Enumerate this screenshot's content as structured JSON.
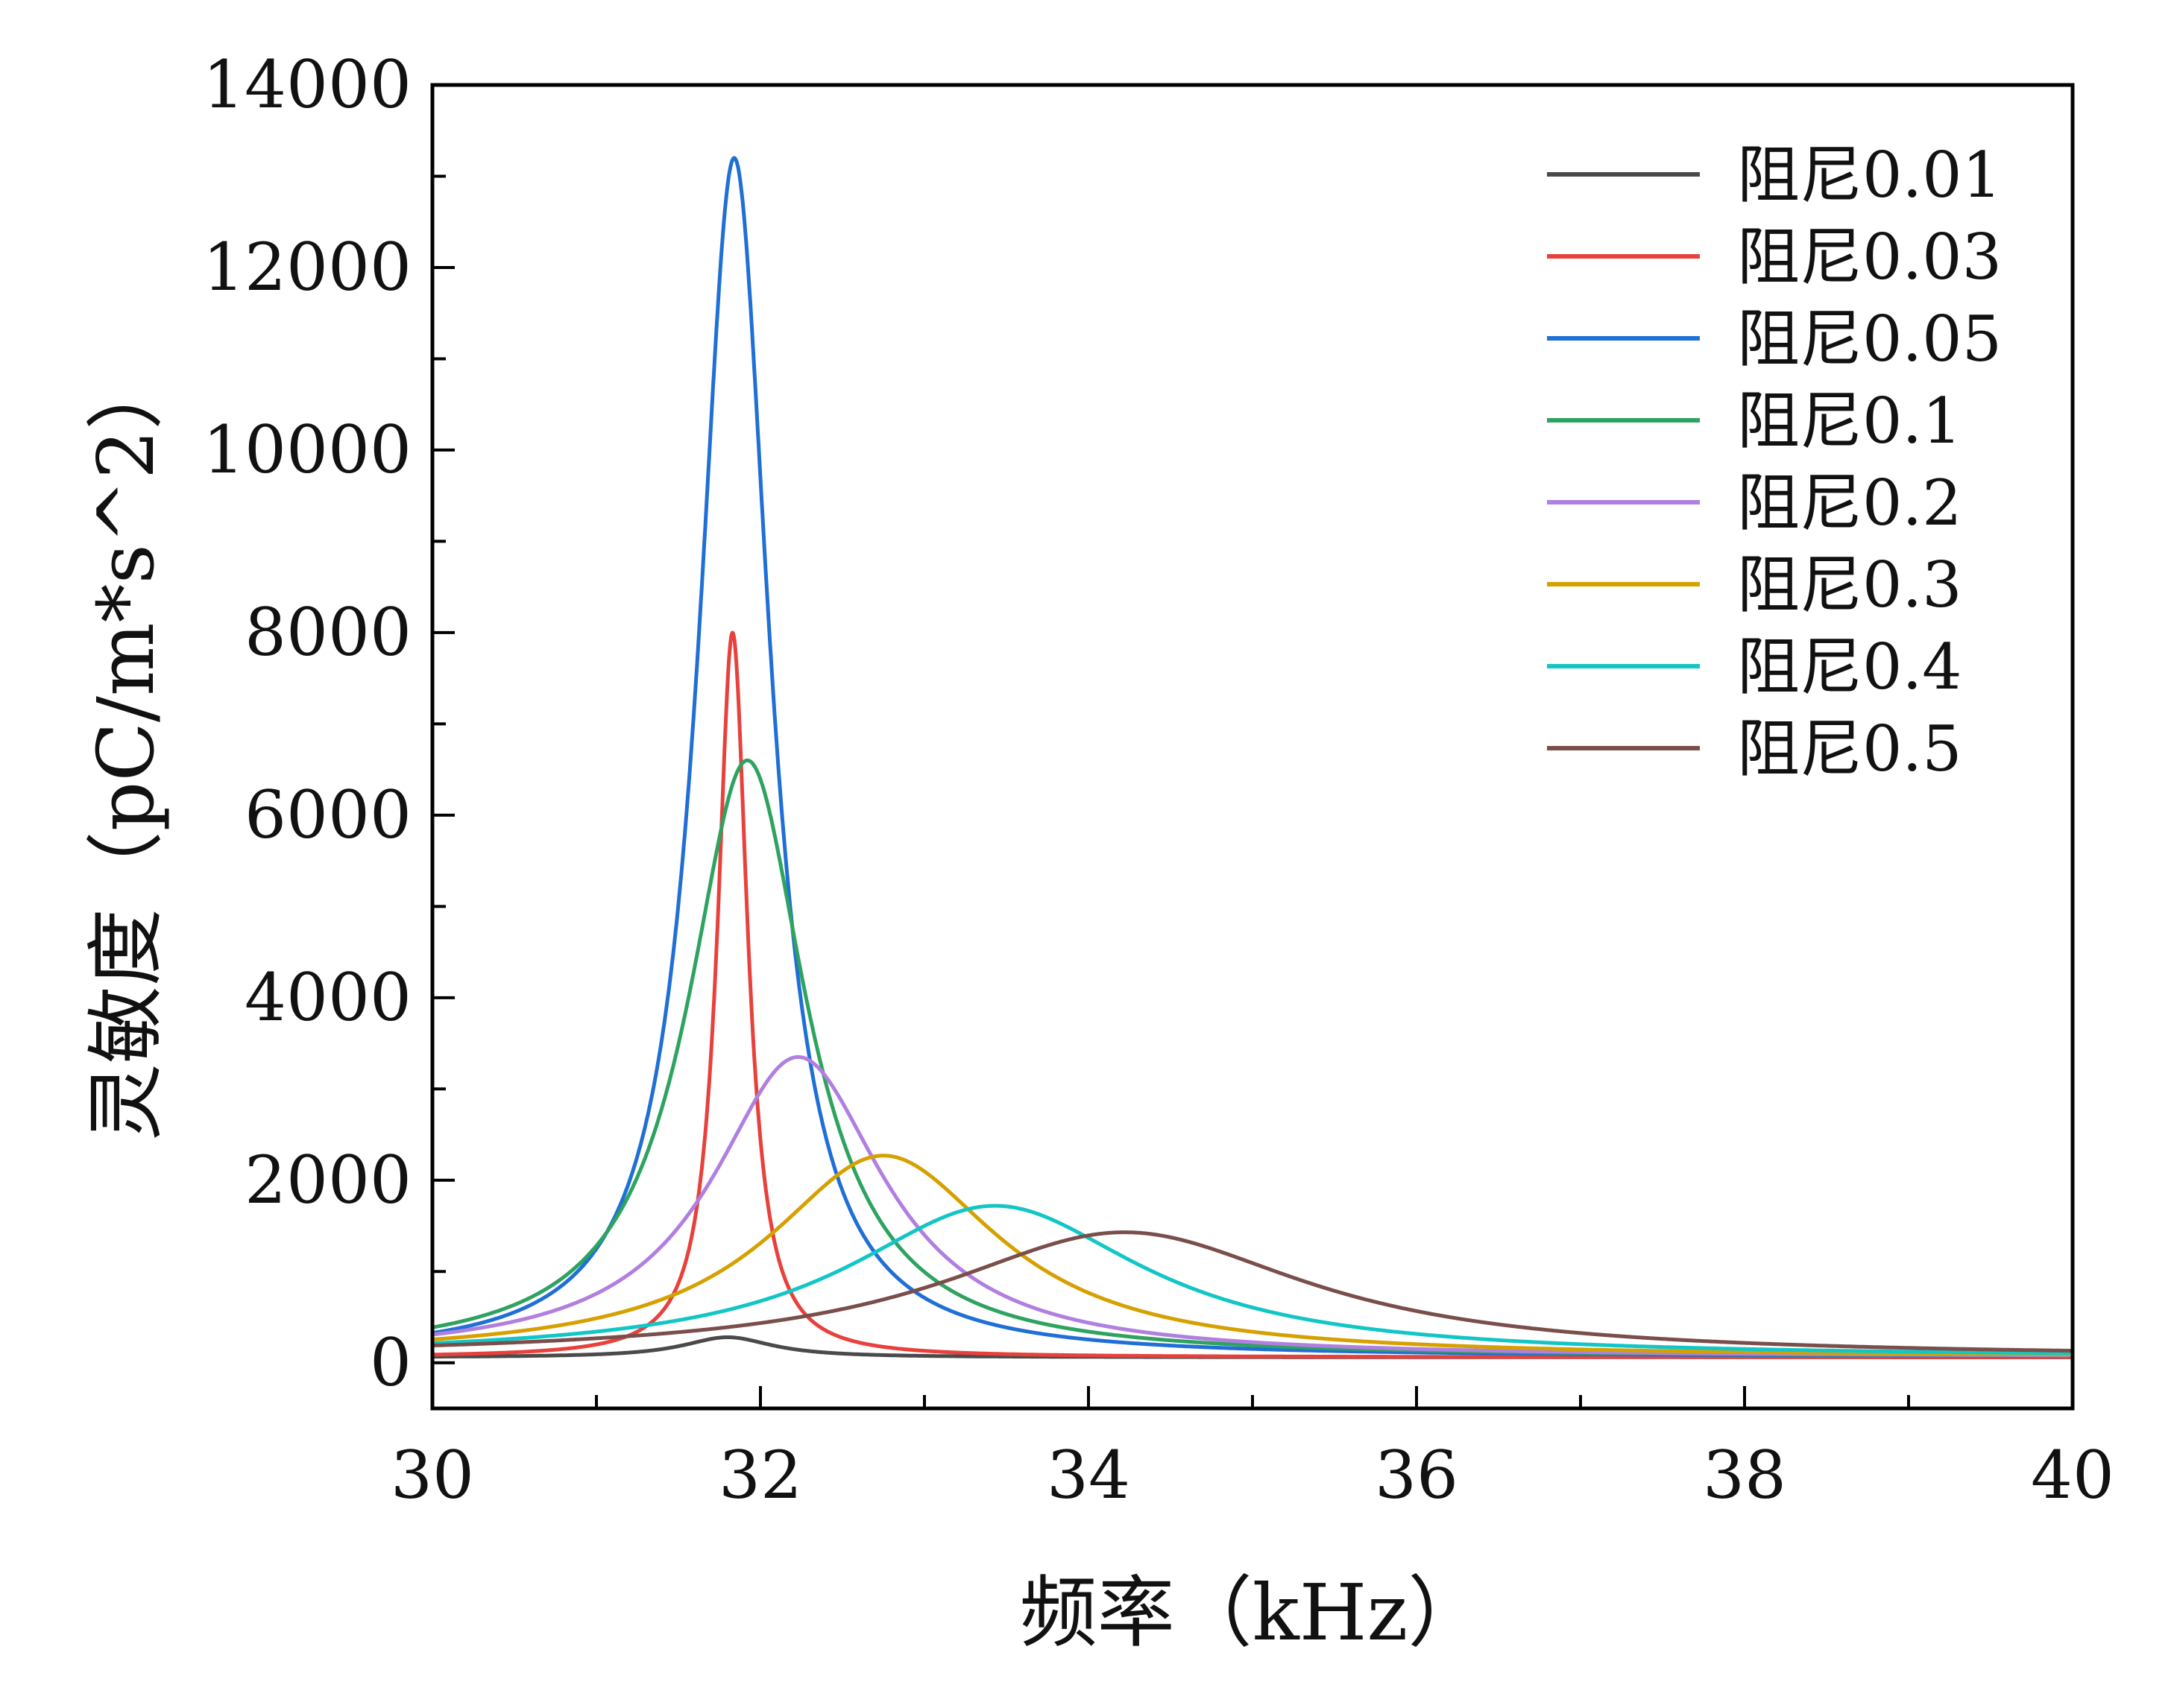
{
  "chart_data": {
    "type": "line",
    "title": "",
    "xlabel": "频率（kHz）",
    "ylabel": "灵敏度（pC/m*s^2）",
    "xlim": [
      30,
      40
    ],
    "ylim": [
      -500,
      14000
    ],
    "x_ticks": [
      "30",
      "32",
      "34",
      "36",
      "38",
      "40"
    ],
    "y_ticks": [
      "0",
      "2000",
      "4000",
      "6000",
      "8000",
      "10000",
      "12000",
      "14000"
    ],
    "grid": false,
    "legend_position": "top-right",
    "series": [
      {
        "name": "阻尼0.01",
        "color": "#4a4a4a",
        "f0": 31.8,
        "peak": 280,
        "baseline": 60
      },
      {
        "name": "阻尼0.03",
        "color": "#e8413c",
        "f0": 31.83,
        "peak": 8000,
        "baseline": 60
      },
      {
        "name": "阻尼0.05",
        "color": "#1f6fd6",
        "f0": 31.84,
        "peak": 13200,
        "baseline": 60
      },
      {
        "name": "阻尼0.1",
        "color": "#2ea35f",
        "f0": 31.92,
        "peak": 6600,
        "baseline": 60
      },
      {
        "name": "阻尼0.2",
        "color": "#b07fe0",
        "f0": 32.23,
        "peak": 3350,
        "baseline": 60
      },
      {
        "name": "阻尼0.3",
        "color": "#d6a000",
        "f0": 32.75,
        "peak": 2270,
        "baseline": 60
      },
      {
        "name": "阻尼0.4",
        "color": "#13c6c6",
        "f0": 33.43,
        "peak": 1720,
        "baseline": 60
      },
      {
        "name": "阻尼0.5",
        "color": "#7a4e4a",
        "f0": 34.22,
        "peak": 1430,
        "baseline": 60
      }
    ]
  }
}
